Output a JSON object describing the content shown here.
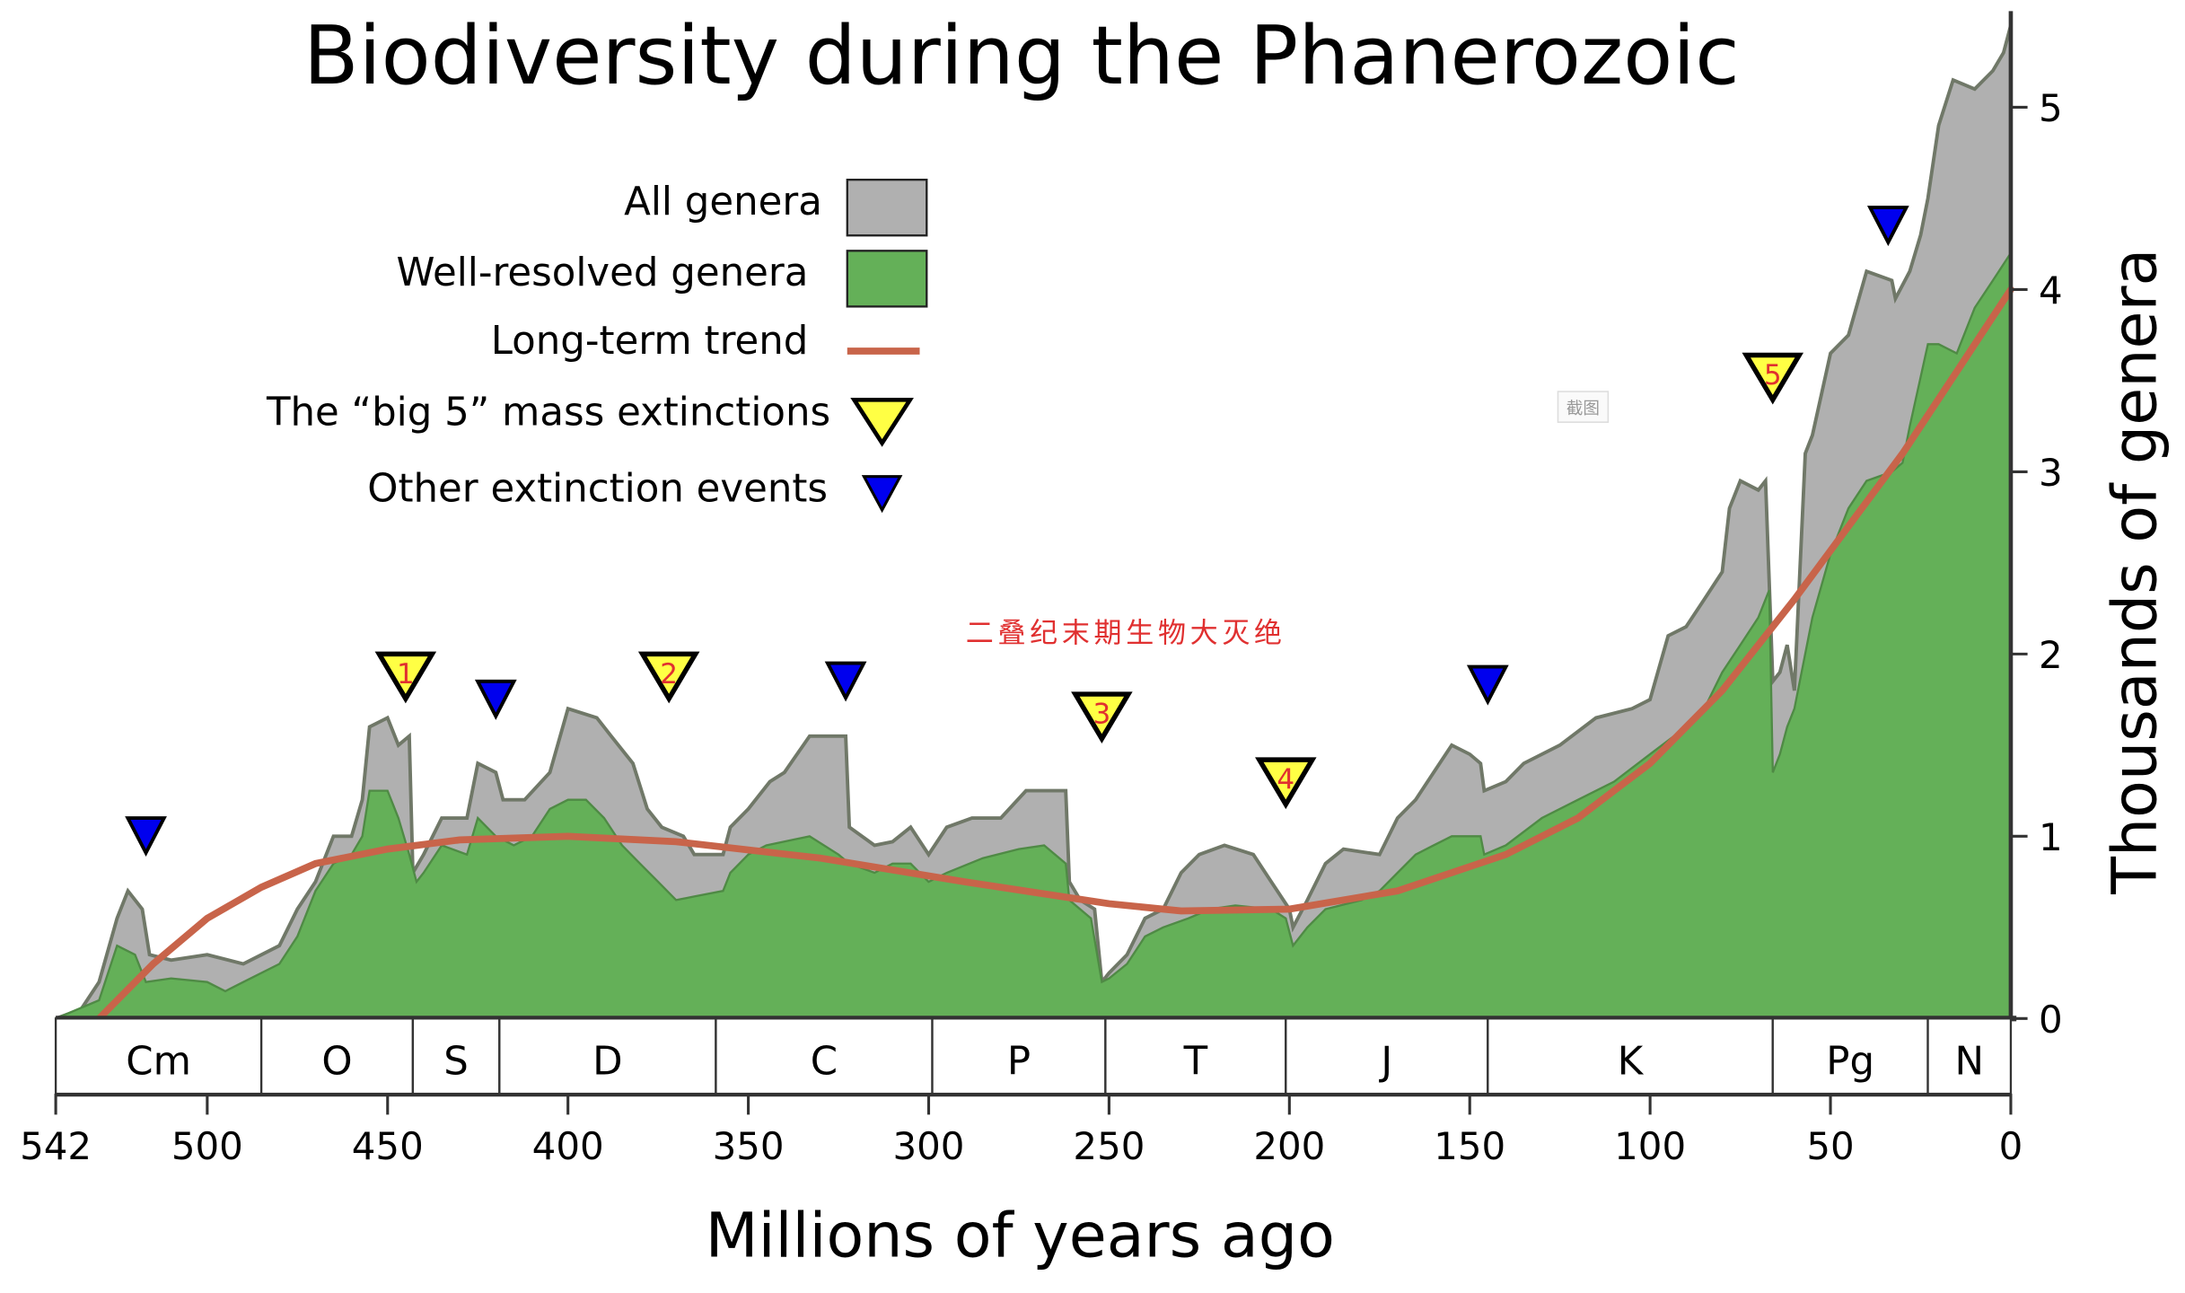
{
  "chart_data": {
    "type": "area",
    "title": "Biodiversity during the Phanerozoic",
    "xlabel": "Millions of years ago",
    "ylabel": "Thousands of genera",
    "xlim": [
      542,
      0
    ],
    "ylim": [
      0,
      5.5
    ],
    "x_ticks": [
      "542",
      "500",
      "450",
      "400",
      "350",
      "300",
      "250",
      "200",
      "150",
      "100",
      "50",
      "0"
    ],
    "x_tick_values": [
      542,
      500,
      450,
      400,
      350,
      300,
      250,
      200,
      150,
      100,
      50,
      0
    ],
    "y_ticks": [
      "0",
      "1",
      "2",
      "3",
      "4",
      "5"
    ],
    "y_tick_values": [
      0,
      1,
      2,
      3,
      4,
      5
    ],
    "colors": {
      "all": "#b0b0b0",
      "all_edge": "#707868",
      "resolved": "#64b058",
      "trend": "#c8644a",
      "big5": "#ffff44",
      "other": "#0000ee"
    },
    "legend": {
      "placement": "top-left",
      "entries": [
        "All genera",
        "Well-resolved genera",
        "Long-term trend",
        "The “big 5” mass extinctions",
        "Other extinction events"
      ]
    },
    "periods": [
      {
        "label": "Cm",
        "start": 542,
        "end": 485
      },
      {
        "label": "O",
        "start": 485,
        "end": 443
      },
      {
        "label": "S",
        "start": 443,
        "end": 419
      },
      {
        "label": "D",
        "start": 419,
        "end": 359
      },
      {
        "label": "C",
        "start": 359,
        "end": 299
      },
      {
        "label": "P",
        "start": 299,
        "end": 251
      },
      {
        "label": "T",
        "start": 251,
        "end": 201
      },
      {
        "label": "J",
        "start": 201,
        "end": 145
      },
      {
        "label": "K",
        "start": 145,
        "end": 66
      },
      {
        "label": "Pg",
        "start": 66,
        "end": 23
      },
      {
        "label": "N",
        "start": 23,
        "end": 0
      }
    ],
    "series": [
      {
        "name": "All genera",
        "points": [
          [
            542,
            0
          ],
          [
            535,
            0.05
          ],
          [
            530,
            0.2
          ],
          [
            525,
            0.55
          ],
          [
            522,
            0.7
          ],
          [
            518,
            0.6
          ],
          [
            516,
            0.35
          ],
          [
            510,
            0.32
          ],
          [
            500,
            0.35
          ],
          [
            490,
            0.3
          ],
          [
            480,
            0.4
          ],
          [
            475,
            0.6
          ],
          [
            470,
            0.75
          ],
          [
            465,
            1.0
          ],
          [
            460,
            1.0
          ],
          [
            457,
            1.2
          ],
          [
            455,
            1.6
          ],
          [
            450,
            1.65
          ],
          [
            447,
            1.5
          ],
          [
            444,
            1.55
          ],
          [
            443,
            0.8
          ],
          [
            440,
            0.9
          ],
          [
            435,
            1.1
          ],
          [
            428,
            1.1
          ],
          [
            425,
            1.4
          ],
          [
            420,
            1.35
          ],
          [
            418,
            1.2
          ],
          [
            412,
            1.2
          ],
          [
            405,
            1.35
          ],
          [
            400,
            1.7
          ],
          [
            392,
            1.65
          ],
          [
            388,
            1.55
          ],
          [
            382,
            1.4
          ],
          [
            378,
            1.15
          ],
          [
            374,
            1.05
          ],
          [
            368,
            1.0
          ],
          [
            365,
            0.9
          ],
          [
            357,
            0.9
          ],
          [
            355,
            1.05
          ],
          [
            350,
            1.15
          ],
          [
            344,
            1.3
          ],
          [
            340,
            1.35
          ],
          [
            333,
            1.55
          ],
          [
            323,
            1.55
          ],
          [
            322,
            1.05
          ],
          [
            315,
            0.95
          ],
          [
            310,
            0.97
          ],
          [
            305,
            1.05
          ],
          [
            300,
            0.9
          ],
          [
            295,
            1.05
          ],
          [
            288,
            1.1
          ],
          [
            280,
            1.1
          ],
          [
            273,
            1.25
          ],
          [
            262,
            1.25
          ],
          [
            261,
            0.75
          ],
          [
            258,
            0.65
          ],
          [
            254,
            0.6
          ],
          [
            252,
            0.2
          ],
          [
            250,
            0.25
          ],
          [
            245,
            0.35
          ],
          [
            240,
            0.55
          ],
          [
            235,
            0.6
          ],
          [
            230,
            0.8
          ],
          [
            225,
            0.9
          ],
          [
            218,
            0.95
          ],
          [
            210,
            0.9
          ],
          [
            205,
            0.75
          ],
          [
            200,
            0.6
          ],
          [
            199,
            0.5
          ],
          [
            195,
            0.65
          ],
          [
            190,
            0.85
          ],
          [
            185,
            0.93
          ],
          [
            175,
            0.9
          ],
          [
            170,
            1.1
          ],
          [
            165,
            1.2
          ],
          [
            160,
            1.35
          ],
          [
            155,
            1.5
          ],
          [
            150,
            1.45
          ],
          [
            147,
            1.4
          ],
          [
            146,
            1.25
          ],
          [
            140,
            1.3
          ],
          [
            135,
            1.4
          ],
          [
            125,
            1.5
          ],
          [
            115,
            1.65
          ],
          [
            105,
            1.7
          ],
          [
            100,
            1.75
          ],
          [
            95,
            2.1
          ],
          [
            90,
            2.15
          ],
          [
            85,
            2.3
          ],
          [
            80,
            2.45
          ],
          [
            78,
            2.8
          ],
          [
            75,
            2.95
          ],
          [
            70,
            2.9
          ],
          [
            68,
            2.95
          ],
          [
            66,
            1.85
          ],
          [
            64,
            1.9
          ],
          [
            62,
            2.05
          ],
          [
            60,
            1.8
          ],
          [
            57,
            3.1
          ],
          [
            55,
            3.2
          ],
          [
            50,
            3.65
          ],
          [
            45,
            3.75
          ],
          [
            40,
            4.1
          ],
          [
            33,
            4.05
          ],
          [
            32,
            3.95
          ],
          [
            28,
            4.1
          ],
          [
            25,
            4.3
          ],
          [
            23,
            4.5
          ],
          [
            20,
            4.9
          ],
          [
            16,
            5.15
          ],
          [
            10,
            5.1
          ],
          [
            5,
            5.2
          ],
          [
            2,
            5.3
          ],
          [
            0,
            5.45
          ]
        ]
      },
      {
        "name": "Well-resolved genera",
        "points": [
          [
            542,
            0
          ],
          [
            530,
            0.1
          ],
          [
            525,
            0.4
          ],
          [
            520,
            0.35
          ],
          [
            517,
            0.2
          ],
          [
            510,
            0.22
          ],
          [
            500,
            0.2
          ],
          [
            495,
            0.15
          ],
          [
            490,
            0.2
          ],
          [
            480,
            0.3
          ],
          [
            475,
            0.45
          ],
          [
            470,
            0.7
          ],
          [
            465,
            0.85
          ],
          [
            460,
            0.9
          ],
          [
            457,
            1.0
          ],
          [
            455,
            1.25
          ],
          [
            450,
            1.25
          ],
          [
            447,
            1.1
          ],
          [
            444,
            0.9
          ],
          [
            442,
            0.75
          ],
          [
            440,
            0.8
          ],
          [
            435,
            0.95
          ],
          [
            428,
            0.9
          ],
          [
            425,
            1.1
          ],
          [
            420,
            1.0
          ],
          [
            415,
            0.95
          ],
          [
            410,
            1.0
          ],
          [
            405,
            1.15
          ],
          [
            400,
            1.2
          ],
          [
            395,
            1.2
          ],
          [
            390,
            1.1
          ],
          [
            385,
            0.95
          ],
          [
            380,
            0.85
          ],
          [
            375,
            0.75
          ],
          [
            370,
            0.65
          ],
          [
            365,
            0.67
          ],
          [
            357,
            0.7
          ],
          [
            355,
            0.8
          ],
          [
            350,
            0.9
          ],
          [
            345,
            0.95
          ],
          [
            333,
            1.0
          ],
          [
            325,
            0.9
          ],
          [
            322,
            0.85
          ],
          [
            315,
            0.8
          ],
          [
            310,
            0.85
          ],
          [
            305,
            0.85
          ],
          [
            300,
            0.75
          ],
          [
            295,
            0.8
          ],
          [
            285,
            0.88
          ],
          [
            275,
            0.93
          ],
          [
            268,
            0.95
          ],
          [
            262,
            0.85
          ],
          [
            261,
            0.65
          ],
          [
            255,
            0.55
          ],
          [
            252,
            0.2
          ],
          [
            250,
            0.22
          ],
          [
            245,
            0.3
          ],
          [
            240,
            0.45
          ],
          [
            235,
            0.5
          ],
          [
            228,
            0.55
          ],
          [
            222,
            0.6
          ],
          [
            215,
            0.62
          ],
          [
            205,
            0.6
          ],
          [
            201,
            0.55
          ],
          [
            199,
            0.4
          ],
          [
            195,
            0.5
          ],
          [
            190,
            0.6
          ],
          [
            180,
            0.65
          ],
          [
            175,
            0.7
          ],
          [
            170,
            0.8
          ],
          [
            165,
            0.9
          ],
          [
            160,
            0.95
          ],
          [
            155,
            1.0
          ],
          [
            147,
            1.0
          ],
          [
            146,
            0.9
          ],
          [
            140,
            0.95
          ],
          [
            130,
            1.1
          ],
          [
            120,
            1.2
          ],
          [
            110,
            1.3
          ],
          [
            100,
            1.45
          ],
          [
            90,
            1.6
          ],
          [
            85,
            1.7
          ],
          [
            80,
            1.9
          ],
          [
            75,
            2.05
          ],
          [
            70,
            2.2
          ],
          [
            67,
            2.35
          ],
          [
            66,
            1.35
          ],
          [
            64,
            1.45
          ],
          [
            62,
            1.6
          ],
          [
            60,
            1.7
          ],
          [
            55,
            2.2
          ],
          [
            50,
            2.55
          ],
          [
            45,
            2.8
          ],
          [
            40,
            2.95
          ],
          [
            33,
            3.0
          ],
          [
            30,
            3.05
          ],
          [
            28,
            3.25
          ],
          [
            23,
            3.7
          ],
          [
            20,
            3.7
          ],
          [
            15,
            3.65
          ],
          [
            10,
            3.9
          ],
          [
            5,
            4.05
          ],
          [
            0,
            4.2
          ]
        ]
      },
      {
        "name": "Long-term trend",
        "points": [
          [
            530,
            0
          ],
          [
            515,
            0.3
          ],
          [
            500,
            0.55
          ],
          [
            485,
            0.72
          ],
          [
            470,
            0.85
          ],
          [
            450,
            0.93
          ],
          [
            430,
            0.98
          ],
          [
            400,
            1.0
          ],
          [
            370,
            0.97
          ],
          [
            330,
            0.88
          ],
          [
            290,
            0.75
          ],
          [
            250,
            0.63
          ],
          [
            230,
            0.59
          ],
          [
            200,
            0.6
          ],
          [
            170,
            0.7
          ],
          [
            140,
            0.9
          ],
          [
            120,
            1.1
          ],
          [
            100,
            1.4
          ],
          [
            80,
            1.8
          ],
          [
            60,
            2.3
          ],
          [
            45,
            2.7
          ],
          [
            30,
            3.1
          ],
          [
            15,
            3.55
          ],
          [
            0,
            4.0
          ]
        ]
      }
    ],
    "big5_extinctions": [
      {
        "label": "1",
        "age": 445,
        "y": 2.0
      },
      {
        "label": "2",
        "age": 372,
        "y": 2.0
      },
      {
        "label": "3",
        "age": 252,
        "y": 1.78
      },
      {
        "label": "4",
        "age": 201,
        "y": 1.42
      },
      {
        "label": "5",
        "age": 66,
        "y": 3.64
      }
    ],
    "other_extinctions": [
      {
        "age": 517,
        "y": 1.1
      },
      {
        "age": 420,
        "y": 1.85
      },
      {
        "age": 323,
        "y": 1.95
      },
      {
        "age": 145,
        "y": 1.93
      },
      {
        "age": 34,
        "y": 4.45
      }
    ],
    "annotation": "二叠纪末期生物大灭绝",
    "watermark": "截图"
  }
}
